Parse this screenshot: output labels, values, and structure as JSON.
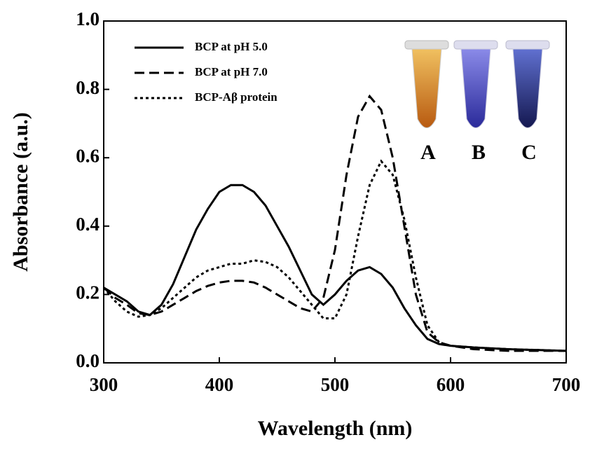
{
  "chart_data": {
    "type": "line",
    "xlabel": "Wavelength (nm)",
    "ylabel": "Absorbance (a.u.)",
    "x": [
      300,
      310,
      320,
      330,
      340,
      350,
      360,
      370,
      380,
      390,
      400,
      410,
      420,
      430,
      440,
      450,
      460,
      470,
      480,
      490,
      500,
      510,
      520,
      530,
      540,
      550,
      560,
      570,
      580,
      590,
      600,
      620,
      650,
      700
    ],
    "series": [
      {
        "name": "BCP at pH 5.0",
        "color": "#000000",
        "dash": "solid",
        "values": [
          0.22,
          0.2,
          0.18,
          0.15,
          0.14,
          0.17,
          0.23,
          0.31,
          0.39,
          0.45,
          0.5,
          0.52,
          0.52,
          0.5,
          0.46,
          0.4,
          0.34,
          0.27,
          0.2,
          0.17,
          0.2,
          0.24,
          0.27,
          0.28,
          0.26,
          0.22,
          0.16,
          0.11,
          0.07,
          0.055,
          0.05,
          0.045,
          0.04,
          0.035
        ]
      },
      {
        "name": "BCP at pH 7.0",
        "color": "#000000",
        "dash": "dashed",
        "values": [
          0.22,
          0.19,
          0.17,
          0.145,
          0.14,
          0.15,
          0.17,
          0.19,
          0.21,
          0.225,
          0.235,
          0.24,
          0.24,
          0.235,
          0.22,
          0.2,
          0.18,
          0.16,
          0.15,
          0.19,
          0.33,
          0.55,
          0.72,
          0.78,
          0.74,
          0.6,
          0.4,
          0.2,
          0.09,
          0.06,
          0.05,
          0.04,
          0.035,
          0.035
        ]
      },
      {
        "name": "BCP-Aβ protein",
        "color": "#000000",
        "dash": "dotted",
        "values": [
          0.22,
          0.18,
          0.15,
          0.135,
          0.14,
          0.16,
          0.19,
          0.22,
          0.25,
          0.27,
          0.28,
          0.29,
          0.29,
          0.3,
          0.295,
          0.28,
          0.25,
          0.21,
          0.17,
          0.13,
          0.13,
          0.2,
          0.37,
          0.52,
          0.59,
          0.55,
          0.42,
          0.25,
          0.11,
          0.06,
          0.05,
          0.045,
          0.04,
          0.035
        ]
      }
    ],
    "xlim": [
      300,
      700
    ],
    "xticks": [
      300,
      400,
      500,
      600,
      700
    ],
    "ylim": [
      0,
      1
    ],
    "yticks": [
      {
        "value": 0,
        "label": "0.0"
      },
      {
        "value": 0.2,
        "label": "0.2"
      },
      {
        "value": 0.4,
        "label": "0.4"
      },
      {
        "value": 0.6,
        "label": "0.6"
      },
      {
        "value": 0.8,
        "label": "0.8"
      },
      {
        "value": 1,
        "label": "1.0"
      }
    ],
    "legend": "upper left",
    "inset_labels": [
      "A",
      "B",
      "C"
    ]
  }
}
